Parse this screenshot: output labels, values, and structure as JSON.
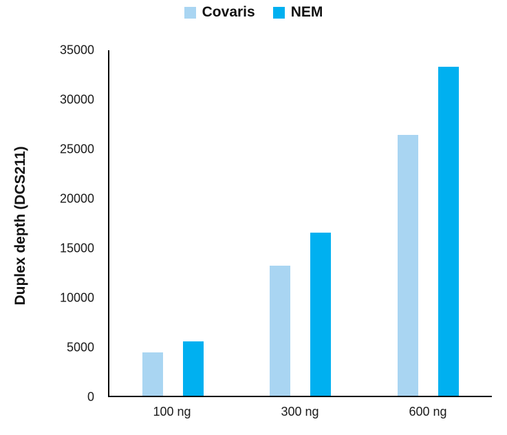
{
  "chart_data": {
    "type": "bar",
    "title": "",
    "xlabel": "",
    "ylabel": "Duplex depth (DCS211)",
    "categories": [
      "100 ng",
      "300 ng",
      "600 ng"
    ],
    "series": [
      {
        "name": "Covaris",
        "color": "#a9d5f2",
        "values": [
          4400,
          13200,
          26400
        ]
      },
      {
        "name": "NEM",
        "color": "#00b0f0",
        "values": [
          5500,
          16500,
          33300
        ]
      }
    ],
    "ylim": [
      0,
      35000
    ],
    "yticks": [
      0,
      5000,
      10000,
      15000,
      20000,
      25000,
      30000,
      35000
    ],
    "grid": false,
    "legend_position": "top",
    "axis_color": "#000000",
    "text_color": "#1a1a1a"
  }
}
